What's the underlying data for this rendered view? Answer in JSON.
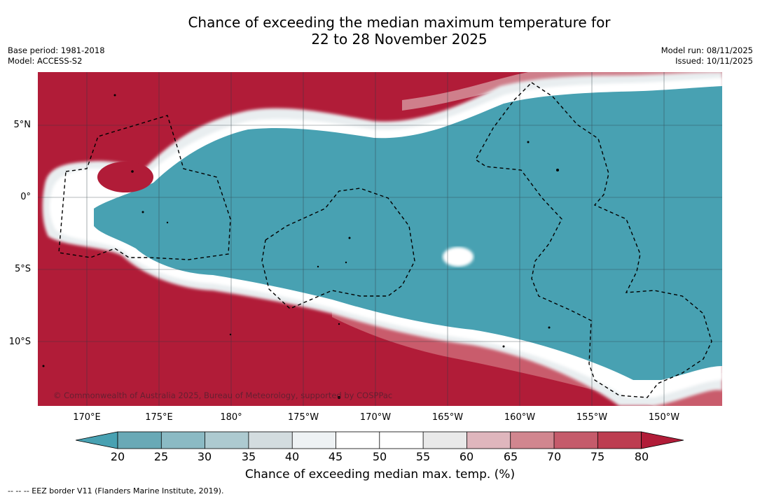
{
  "title": {
    "line1": "Chance of exceeding the median maximum temperature for",
    "line2": "22 to 28 November 2025"
  },
  "meta": {
    "base_period": "Base period: 1981-2018",
    "model": "Model: ACCESS-S2",
    "model_run": "Model run: 08/11/2025",
    "issued": "Issued: 10/11/2025"
  },
  "map": {
    "copyright": "© Commonwealth of Australia 2025, Bureau of Meteorology, supported by COSPPac",
    "lat_labels": [
      "5°N",
      "0°",
      "5°S",
      "10°S"
    ],
    "lon_labels": [
      "170°E",
      "175°E",
      "180°",
      "175°W",
      "170°W",
      "165°W",
      "160°W",
      "155°W",
      "150°W"
    ],
    "colors": {
      "above": "#b11c38",
      "below": "#48a1b2",
      "grid": "#2a3a40"
    }
  },
  "colorbar": {
    "ticks": [
      "20",
      "25",
      "30",
      "35",
      "40",
      "45",
      "50",
      "55",
      "60",
      "65",
      "70",
      "75",
      "80"
    ],
    "colors": [
      "#48a1b2",
      "#69a9b6",
      "#8bbac4",
      "#adcad0",
      "#d3dcdf",
      "#eef2f4",
      "#ffffff",
      "#ffffff",
      "#e9e9e9",
      "#dfb6bd",
      "#d1868f",
      "#c55b6b",
      "#bd3d50",
      "#b11c38"
    ],
    "title": "Chance of exceeding median max. temp. (%)"
  },
  "footer": {
    "eez_legend": "--  --  -- EEZ border V11 (Flanders Marine Institute, 2019)."
  }
}
